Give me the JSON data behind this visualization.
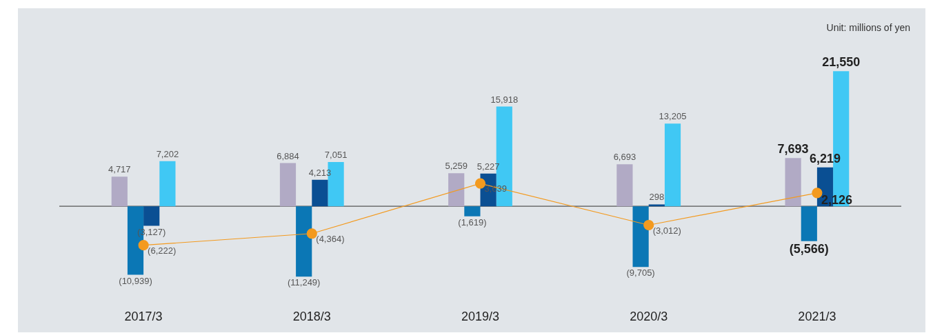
{
  "chart_data": {
    "type": "bar",
    "categories": [
      "2017/3",
      "2018/3",
      "2019/3",
      "2020/3",
      "2021/3"
    ],
    "series": [
      {
        "color": "#b1aac5",
        "values": [
          4717,
          6884,
          5259,
          6693,
          7693
        ],
        "value_labels": [
          "4,717",
          "6,884",
          "5,259",
          "6,693",
          "7,693"
        ]
      },
      {
        "color": "#0b77b5",
        "values": [
          -10939,
          -11249,
          -1619,
          -9705,
          -5566
        ],
        "value_labels": [
          "(10,939)",
          "(11,249)",
          "(1,619)",
          "(9,705)",
          "(5,566)"
        ]
      },
      {
        "color": "#0a4f93",
        "values": [
          -3127,
          4213,
          5227,
          298,
          6219
        ],
        "value_labels": [
          "(3,127)",
          "4,213",
          "5,227",
          "298",
          "6,219"
        ]
      },
      {
        "color": "#40c8f4",
        "values": [
          7202,
          7051,
          15918,
          13205,
          21550
        ],
        "value_labels": [
          "7,202",
          "7,051",
          "15,918",
          "13,205",
          "21,550"
        ]
      },
      {
        "type": "line",
        "color": "#f39a1f",
        "marker": "circle",
        "values": [
          -6222,
          -4364,
          3639,
          -3012,
          2126
        ],
        "value_labels": [
          "(6,222)",
          "(4,364)",
          "3,639",
          "(3,012)",
          "2,126"
        ]
      }
    ],
    "annotations": [
      "Unit: millions of yen"
    ]
  }
}
